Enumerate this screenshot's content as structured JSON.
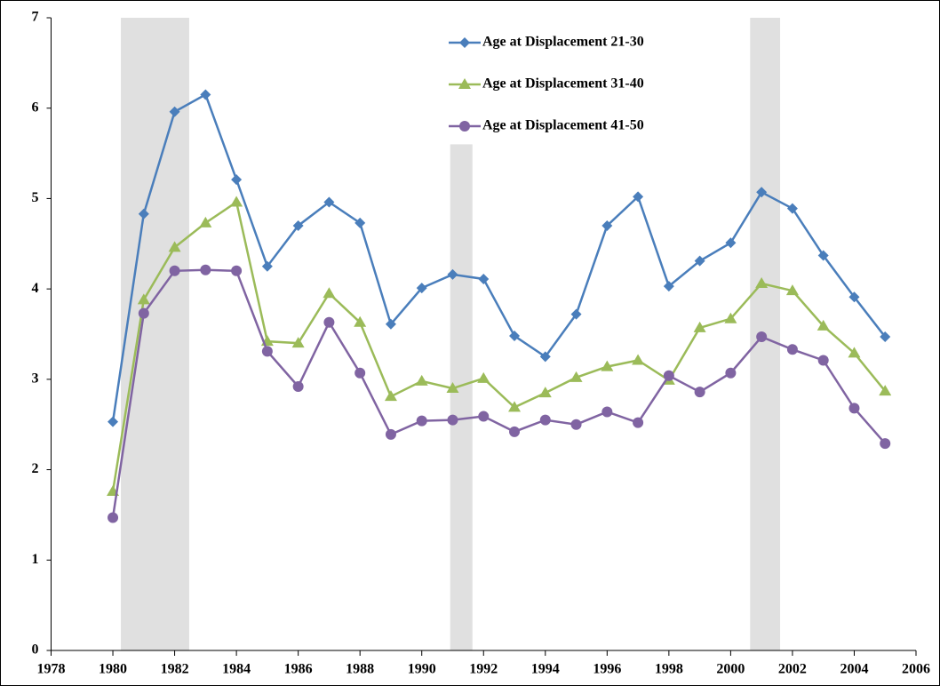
{
  "chart_data": {
    "type": "line",
    "x": [
      1980,
      1981,
      1982,
      1983,
      1984,
      1985,
      1986,
      1987,
      1988,
      1989,
      1990,
      1991,
      1992,
      1993,
      1994,
      1995,
      1996,
      1997,
      1998,
      1999,
      2000,
      2001,
      2002,
      2003,
      2004,
      2005
    ],
    "series": [
      {
        "name": "Age at Displacement 21-30",
        "color": "#4a7ebb",
        "marker": "diamond",
        "values": [
          2.53,
          4.83,
          5.96,
          6.15,
          5.21,
          4.25,
          4.7,
          4.96,
          4.73,
          3.61,
          4.01,
          4.16,
          4.11,
          3.48,
          3.25,
          3.72,
          4.7,
          5.02,
          4.03,
          4.31,
          4.51,
          5.07,
          4.89,
          4.37,
          3.91,
          3.47
        ]
      },
      {
        "name": "Age at Displacement 31-40",
        "color": "#9bbb59",
        "marker": "triangle",
        "values": [
          1.76,
          3.88,
          4.46,
          4.73,
          4.96,
          3.42,
          3.4,
          3.95,
          3.63,
          2.81,
          2.98,
          2.9,
          3.01,
          2.69,
          2.85,
          3.02,
          3.14,
          3.21,
          2.99,
          3.57,
          3.67,
          4.06,
          3.98,
          3.59,
          3.29,
          2.87
        ]
      },
      {
        "name": "Age at Displacement 41-50",
        "color": "#8064a2",
        "marker": "circle",
        "values": [
          1.47,
          3.73,
          4.2,
          4.21,
          4.2,
          3.31,
          2.92,
          3.63,
          3.07,
          2.39,
          2.54,
          2.55,
          2.59,
          2.42,
          2.55,
          2.5,
          2.64,
          2.52,
          3.04,
          2.86,
          3.07,
          3.47,
          3.33,
          3.21,
          2.68,
          2.29
        ]
      }
    ],
    "shaded_regions": [
      {
        "start": 1980.26,
        "end": 1982.47,
        "top": 7,
        "color": "#e0e0e0"
      },
      {
        "start": 1990.92,
        "end": 1991.64,
        "top": 5.6,
        "color": "#e0e0e0"
      },
      {
        "start": 2000.63,
        "end": 2001.6,
        "top": 7,
        "color": "#e0e0e0"
      }
    ],
    "xlim": [
      1978,
      2006
    ],
    "xticks": [
      1978,
      1980,
      1982,
      1984,
      1986,
      1988,
      1990,
      1992,
      1994,
      1996,
      1998,
      2000,
      2002,
      2004,
      2006
    ],
    "ylim": [
      0,
      7
    ],
    "yticks": [
      0,
      1,
      2,
      3,
      4,
      5,
      6,
      7
    ],
    "grid": false,
    "legend": "top"
  }
}
